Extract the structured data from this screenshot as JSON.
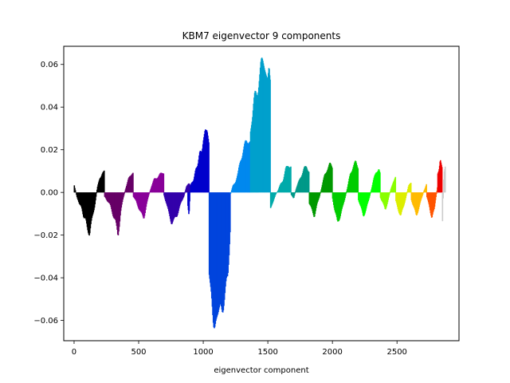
{
  "chart_data": {
    "type": "area",
    "title": "KBM7 eigenvector 9 components",
    "xlabel": "eigenvector component",
    "ylabel": "",
    "xlim": [
      -80,
      2980
    ],
    "ylim": [
      -0.0695,
      0.0685
    ],
    "xticks": [
      0,
      500,
      1000,
      1500,
      2000,
      2500
    ],
    "xtick_labels": [
      "0",
      "500",
      "1000",
      "1500",
      "2000",
      "2500"
    ],
    "yticks": [
      -0.06,
      -0.04,
      -0.02,
      0.0,
      0.02,
      0.04,
      0.06
    ],
    "ytick_labels": [
      "−0.06",
      "−0.04",
      "−0.02",
      "0.00",
      "0.02",
      "0.04",
      "0.06"
    ],
    "grid": false,
    "legend": "none",
    "series": [
      {
        "color": "#000000",
        "x": [
          0,
          25,
          50,
          75,
          100,
          120,
          140,
          160,
          180,
          200,
          220,
          235
        ],
        "y": [
          0.004,
          -0.003,
          -0.006,
          -0.011,
          -0.015,
          -0.02,
          -0.012,
          -0.006,
          0.002,
          0.007,
          0.009,
          0.01
        ]
      },
      {
        "color": "#660066",
        "x": [
          235,
          260,
          280,
          300,
          320,
          340,
          360,
          380,
          400,
          420,
          440,
          458
        ],
        "y": [
          -0.002,
          -0.004,
          -0.006,
          -0.01,
          -0.013,
          -0.021,
          -0.009,
          -0.003,
          0.002,
          0.006,
          0.008,
          0.009
        ]
      },
      {
        "color": "#880099",
        "x": [
          458,
          480,
          500,
          520,
          540,
          560,
          580,
          600,
          620,
          640,
          660,
          680,
          695
        ],
        "y": [
          -0.002,
          -0.004,
          -0.007,
          -0.01,
          -0.012,
          -0.006,
          -0.001,
          0.003,
          0.006,
          0.007,
          0.008,
          0.009,
          0.009
        ]
      },
      {
        "color": "#3300aa",
        "x": [
          695,
          715,
          735,
          755,
          775,
          795,
          815,
          835,
          850,
          870,
          890,
          900
        ],
        "y": [
          -0.001,
          -0.005,
          -0.01,
          -0.014,
          -0.013,
          -0.011,
          -0.007,
          -0.004,
          -0.002,
          0.003,
          0.004,
          0.003
        ]
      },
      {
        "color": "#0000cc",
        "x": [
          880,
          890,
          900,
          925,
          950,
          975,
          1000,
          1015,
          1030,
          1045
        ],
        "y": [
          -0.005,
          -0.012,
          0.003,
          0.006,
          0.012,
          0.018,
          0.023,
          0.028,
          0.027,
          0.021
        ]
      },
      {
        "color": "#0044dd",
        "x": [
          1045,
          1060,
          1080,
          1100,
          1115,
          1130,
          1150,
          1170,
          1190,
          1210
        ],
        "y": [
          -0.041,
          -0.049,
          -0.058,
          -0.063,
          -0.061,
          -0.057,
          -0.053,
          -0.047,
          -0.04,
          -0.015
        ]
      },
      {
        "color": "#0088ee",
        "x": [
          1210,
          1230,
          1250,
          1270,
          1290,
          1310,
          1330,
          1350,
          1365
        ],
        "y": [
          -0.001,
          0.003,
          0.005,
          0.009,
          0.015,
          0.02,
          0.023,
          0.025,
          0.026
        ]
      },
      {
        "color": "#00a0cc",
        "x": [
          1365,
          1380,
          1400,
          1420,
          1440,
          1460,
          1475,
          1490,
          1510,
          1520
        ],
        "y": [
          0.03,
          0.036,
          0.044,
          0.049,
          0.054,
          0.063,
          0.06,
          0.058,
          0.058,
          0.057
        ]
      },
      {
        "color": "#00aaaa",
        "x": [
          1520,
          1540,
          1560,
          1580,
          1600,
          1620,
          1640,
          1660,
          1680
        ],
        "y": [
          -0.007,
          -0.005,
          -0.001,
          0.001,
          0.004,
          0.006,
          0.011,
          0.013,
          0.012
        ]
      },
      {
        "color": "#009988",
        "x": [
          1680,
          1700,
          1720,
          1740,
          1760,
          1780,
          1800,
          1820
        ],
        "y": [
          -0.001,
          -0.003,
          0.002,
          0.005,
          0.008,
          0.011,
          0.012,
          0.01
        ]
      },
      {
        "color": "#009900",
        "x": [
          1820,
          1840,
          1860,
          1880,
          1900,
          1920,
          1940,
          1960,
          1980,
          2000
        ],
        "y": [
          -0.005,
          -0.008,
          -0.011,
          -0.006,
          -0.002,
          0.003,
          0.008,
          0.011,
          0.013,
          0.012
        ]
      },
      {
        "color": "#00cc00",
        "x": [
          2000,
          2020,
          2040,
          2060,
          2080,
          2100,
          2120,
          2140,
          2160,
          2180,
          2200
        ],
        "y": [
          -0.002,
          -0.009,
          -0.014,
          -0.011,
          -0.007,
          -0.002,
          0.003,
          0.009,
          0.012,
          0.014,
          0.012
        ]
      },
      {
        "color": "#00ff00",
        "x": [
          2200,
          2220,
          2240,
          2260,
          2280,
          2300,
          2320,
          2340,
          2360,
          2370
        ],
        "y": [
          -0.003,
          -0.007,
          -0.011,
          -0.008,
          -0.004,
          0.001,
          0.006,
          0.01,
          0.011,
          0.01
        ]
      },
      {
        "color": "#88ff00",
        "x": [
          2370,
          2390,
          2410,
          2430,
          2450,
          2470,
          2490
        ],
        "y": [
          -0.002,
          -0.005,
          -0.008,
          -0.004,
          0.001,
          0.005,
          0.007
        ]
      },
      {
        "color": "#ddee00",
        "x": [
          2490,
          2510,
          2530,
          2550,
          2570,
          2590,
          2610
        ],
        "y": [
          -0.004,
          -0.008,
          -0.011,
          -0.007,
          -0.002,
          0.003,
          0.005
        ]
      },
      {
        "color": "#ffbb00",
        "x": [
          2610,
          2630,
          2650,
          2670,
          2690,
          2710,
          2730
        ],
        "y": [
          -0.003,
          -0.007,
          -0.011,
          -0.007,
          -0.003,
          0.001,
          0.004
        ]
      },
      {
        "color": "#ff5500",
        "x": [
          2730,
          2750,
          2770,
          2790,
          2800,
          2815
        ],
        "y": [
          -0.002,
          -0.006,
          -0.012,
          -0.008,
          -0.003,
          0.003
        ]
      },
      {
        "color": "#ee0000",
        "x": [
          2815,
          2825,
          2835,
          2850
        ],
        "y": [
          0.008,
          0.011,
          0.016,
          0.012
        ]
      },
      {
        "color": "#cccccc",
        "x": [
          2850,
          2855,
          2860,
          2865,
          2875
        ],
        "y": [
          -0.017,
          -0.008,
          0.002,
          0.01,
          0.012
        ]
      }
    ]
  }
}
